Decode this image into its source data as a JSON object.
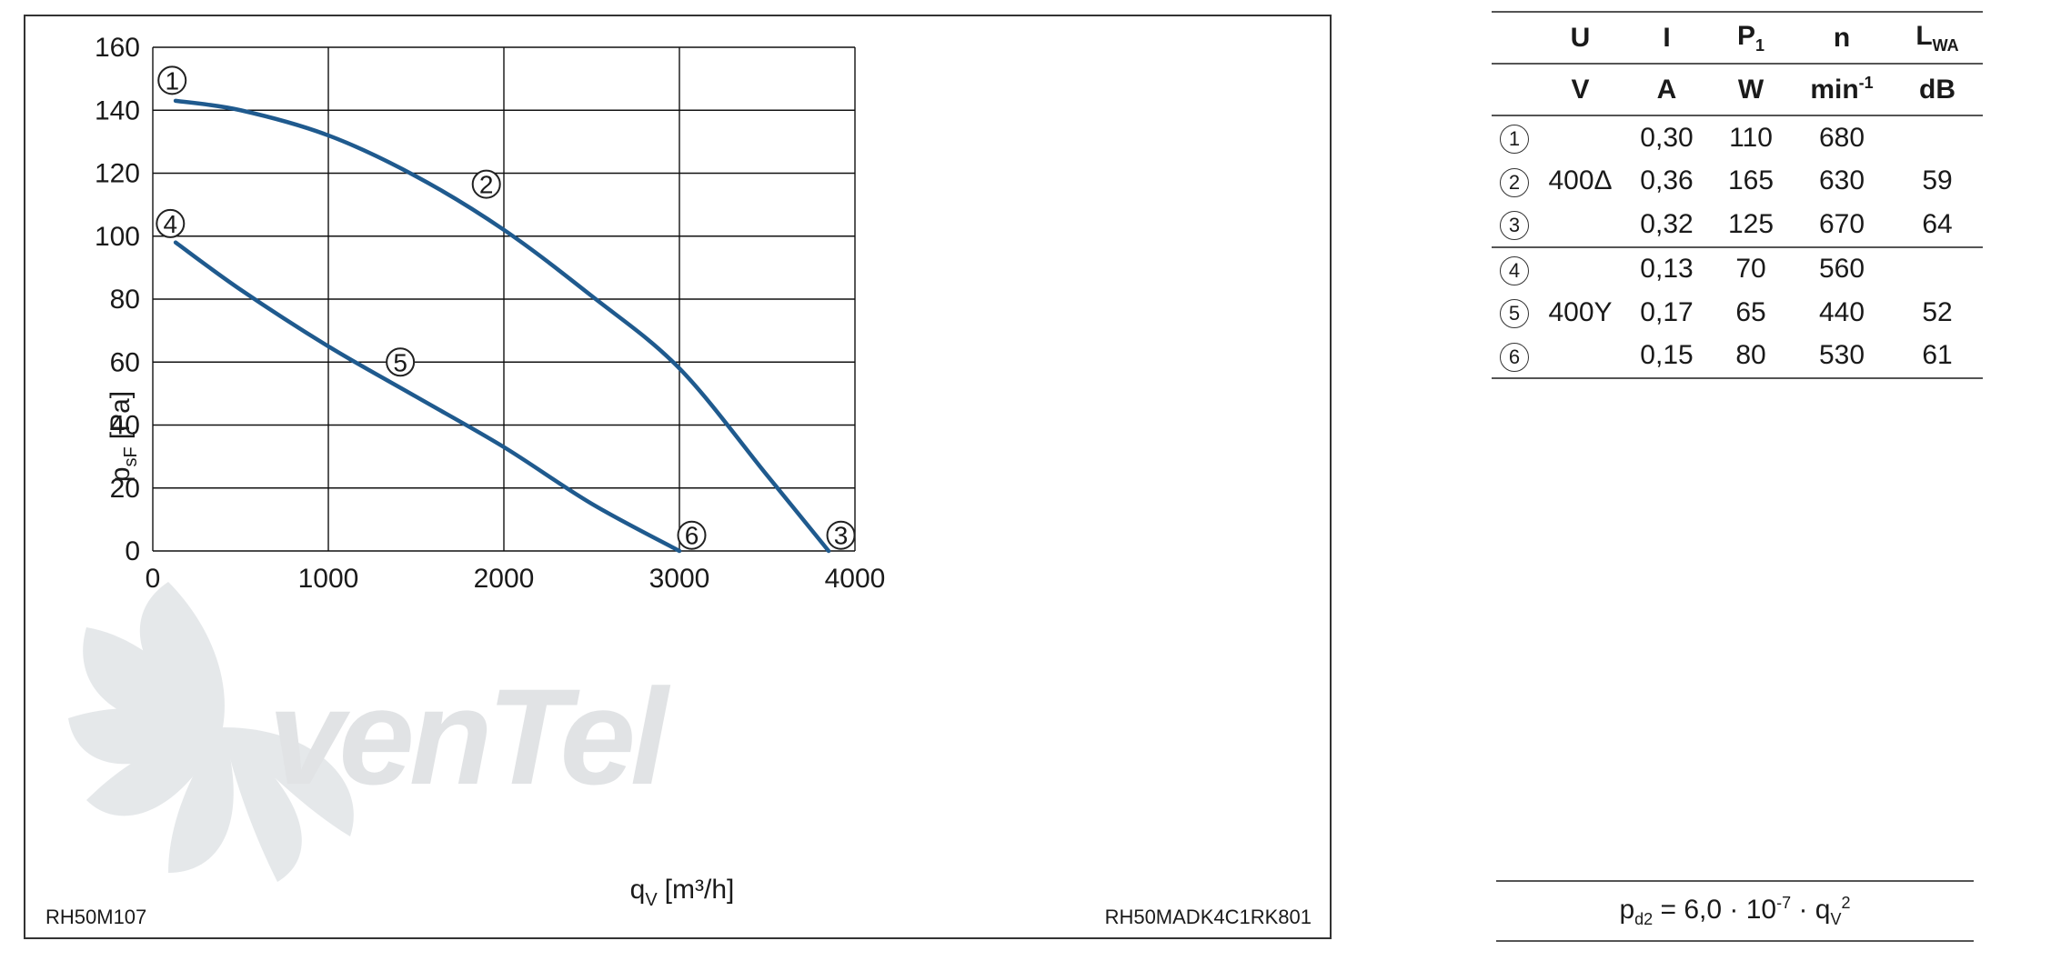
{
  "chart_data": {
    "type": "line",
    "xlabel_main": "q",
    "xlabel_sub": "V",
    "xlabel_unit": "[m³/h]",
    "ylabel_main": "p",
    "ylabel_sub": "sF",
    "ylabel_unit": "[Pa]",
    "xlim": [
      0,
      4000
    ],
    "ylim": [
      0,
      160
    ],
    "x_ticks": [
      0,
      1000,
      2000,
      3000,
      4000
    ],
    "y_ticks": [
      0,
      20,
      40,
      60,
      80,
      100,
      120,
      140,
      160
    ],
    "grid": true,
    "series": [
      {
        "color": "#1f5a8e",
        "x": [
          130,
          500,
          1000,
          1500,
          2000,
          2500,
          3000,
          3500,
          3850
        ],
        "y": [
          143,
          140,
          132,
          119,
          102,
          81,
          58,
          24,
          0
        ]
      },
      {
        "color": "#1f5a8e",
        "x": [
          130,
          500,
          1000,
          1500,
          2000,
          2500,
          3000
        ],
        "y": [
          98,
          83,
          65,
          49,
          33,
          15,
          0
        ]
      }
    ],
    "markers": [
      {
        "label": "1",
        "x": 110,
        "y": 149.5
      },
      {
        "label": "2",
        "x": 1900,
        "y": 116.5
      },
      {
        "label": "3",
        "x": 3920,
        "y": 5
      },
      {
        "label": "4",
        "x": 100,
        "y": 104
      },
      {
        "label": "5",
        "x": 1410,
        "y": 60
      },
      {
        "label": "6",
        "x": 3070,
        "y": 5
      }
    ],
    "watermark": "venTel",
    "footnote_left": "RH50M107",
    "footnote_right": "RH50MADK4C1RK801"
  },
  "table": {
    "header1": {
      "u": "U",
      "i": "I",
      "p": "P",
      "p_sub": "1",
      "n": "n",
      "l": "L",
      "l_sub": "WA"
    },
    "header2": {
      "u": "V",
      "i": "A",
      "p": "W",
      "n": "min",
      "n_sup": "-1",
      "l": "dB"
    },
    "rows": [
      {
        "mark": "1",
        "u": "",
        "i": "0,30",
        "p": "110",
        "n": "680",
        "l": ""
      },
      {
        "mark": "2",
        "u": "400Δ",
        "i": "0,36",
        "p": "165",
        "n": "630",
        "l": "59"
      },
      {
        "mark": "3",
        "u": "",
        "i": "0,32",
        "p": "125",
        "n": "670",
        "l": "64"
      },
      {
        "mark": "4",
        "u": "",
        "i": "0,13",
        "p": "70",
        "n": "560",
        "l": ""
      },
      {
        "mark": "5",
        "u": "400Y",
        "i": "0,17",
        "p": "65",
        "n": "440",
        "l": "52"
      },
      {
        "mark": "6",
        "u": "",
        "i": "0,15",
        "p": "80",
        "n": "530",
        "l": "61"
      }
    ]
  },
  "formula": {
    "p": "p",
    "p_sub": "d2",
    "mid": " = 6,0 · 10",
    "exp": "-7",
    "dot": " · q",
    "q_sub": "V",
    "q_sup": "2"
  }
}
